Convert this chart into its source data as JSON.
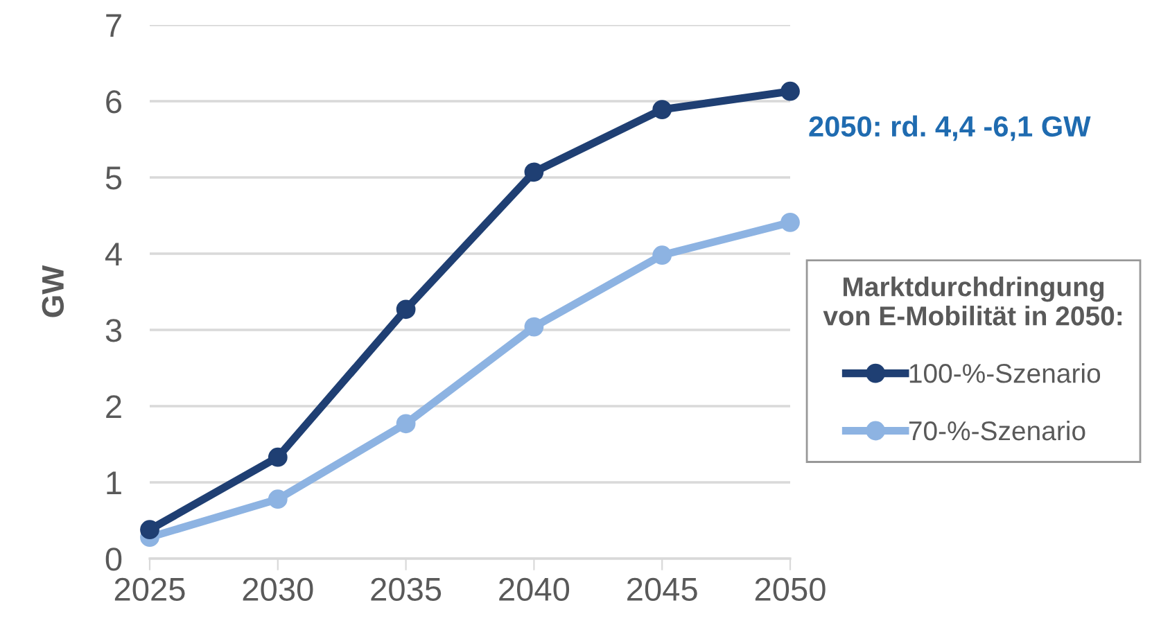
{
  "chart_data": {
    "type": "line",
    "ylabel": "GW",
    "legend_title": "Marktdurchdringung\nvon E-Mobilität in 2050:",
    "x": [
      2025,
      2030,
      2035,
      2040,
      2045,
      2050
    ],
    "series": [
      {
        "name": "100-%-Szenario",
        "color": "#1f3f73",
        "values": [
          0.38,
          1.33,
          3.27,
          5.07,
          5.89,
          6.13
        ]
      },
      {
        "name": "70-%-Szenario",
        "color": "#8db3e2",
        "values": [
          0.28,
          0.78,
          1.77,
          3.04,
          3.98,
          4.41
        ]
      }
    ],
    "xlim": [
      2025,
      2050
    ],
    "xticks": [
      2025,
      2030,
      2035,
      2040,
      2045,
      2050
    ],
    "ylim": [
      0,
      7
    ],
    "yticks": [
      0,
      1,
      2,
      3,
      4,
      5,
      6,
      7
    ],
    "grid": "y",
    "legend": "right",
    "marker": "circle",
    "line_style": "solid",
    "annotations": [
      "2050: rd. 4,4 -6,1 GW"
    ]
  }
}
